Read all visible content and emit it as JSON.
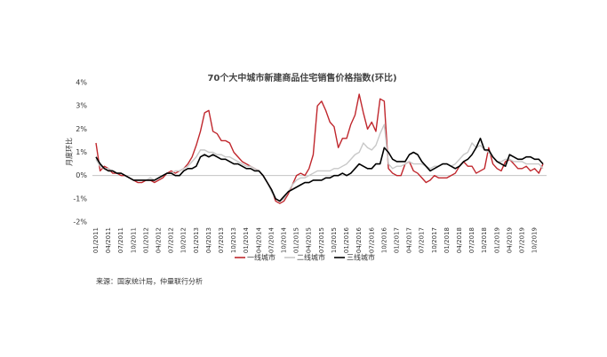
{
  "chart_data": {
    "type": "line",
    "title": "70个大中城市新建商品住宅销售价格指数(环比)",
    "y_label": "月度环比",
    "source": "来源：国家统计局，仲量联行分析",
    "categories": [
      "01/2011",
      null,
      null,
      "04/2011",
      null,
      null,
      "07/2011",
      null,
      null,
      "10/2011",
      null,
      null,
      "01/2012",
      null,
      null,
      "04/2012",
      null,
      null,
      "07/2012",
      null,
      null,
      "10/2012",
      null,
      null,
      "01/2013",
      null,
      null,
      "04/2013",
      null,
      null,
      "07/2013",
      null,
      null,
      "10/2013",
      null,
      null,
      "01/2014",
      null,
      null,
      "04/2014",
      null,
      null,
      "07/2014",
      null,
      null,
      "10/2014",
      null,
      null,
      "01/2015",
      null,
      null,
      "04/2015",
      null,
      null,
      "07/2015",
      null,
      null,
      "10/2015",
      null,
      null,
      "01/2016",
      null,
      null,
      "04/2016",
      null,
      null,
      "07/2016",
      null,
      null,
      "10/2016",
      null,
      null,
      "01/2017",
      null,
      null,
      "04/2017",
      null,
      null,
      "07/2017",
      null,
      null,
      "10/2017",
      null,
      null,
      "01/2018",
      null,
      null,
      "04/2018",
      null,
      null,
      "07/2018",
      null,
      null,
      "10/2018",
      null,
      null,
      "01/2019",
      null,
      null,
      "04/2019",
      null,
      null,
      "07/2019",
      null,
      null,
      "10/2019",
      null,
      null
    ],
    "series": [
      {
        "name": "一线城市",
        "color": "#c0272d",
        "values": [
          1.4,
          0.2,
          0.4,
          0.3,
          0.1,
          0.1,
          0.0,
          0.0,
          -0.1,
          -0.2,
          -0.3,
          -0.3,
          -0.2,
          -0.2,
          -0.3,
          -0.2,
          -0.1,
          0.1,
          0.2,
          0.1,
          0.2,
          0.3,
          0.5,
          0.8,
          1.3,
          1.9,
          2.7,
          2.8,
          1.9,
          1.8,
          1.5,
          1.5,
          1.4,
          1.0,
          0.8,
          0.6,
          0.5,
          0.4,
          0.3,
          0.2,
          0.0,
          -0.3,
          -0.6,
          -1.1,
          -1.2,
          -1.1,
          -0.8,
          -0.4,
          0.0,
          0.1,
          0.0,
          0.3,
          0.9,
          3.0,
          3.2,
          2.8,
          2.3,
          2.1,
          1.2,
          1.6,
          1.6,
          2.2,
          2.6,
          3.5,
          2.7,
          2.0,
          2.3,
          1.9,
          3.3,
          3.2,
          0.3,
          0.1,
          0.0,
          0.0,
          0.5,
          0.6,
          0.2,
          0.1,
          -0.1,
          -0.3,
          -0.2,
          0.0,
          -0.1,
          -0.1,
          -0.1,
          0.0,
          0.1,
          0.4,
          0.6,
          0.4,
          0.4,
          0.1,
          0.2,
          0.3,
          1.2,
          0.5,
          0.3,
          0.2,
          0.6,
          0.7,
          0.5,
          0.3,
          0.3,
          0.4,
          0.2,
          0.3,
          0.1,
          0.5
        ]
      },
      {
        "name": "二线城市",
        "color": "#c8c8c8",
        "values": [
          0.7,
          0.4,
          0.3,
          0.3,
          0.2,
          0.1,
          0.1,
          0.0,
          -0.1,
          -0.2,
          -0.2,
          -0.2,
          -0.2,
          -0.1,
          -0.2,
          -0.1,
          0.0,
          0.1,
          0.1,
          0.2,
          0.2,
          0.3,
          0.4,
          0.6,
          0.8,
          1.1,
          1.1,
          1.0,
          1.0,
          0.9,
          0.9,
          0.8,
          0.8,
          0.7,
          0.6,
          0.5,
          0.4,
          0.4,
          0.3,
          0.2,
          0.0,
          -0.3,
          -0.7,
          -1.0,
          -1.1,
          -1.0,
          -0.7,
          -0.4,
          -0.2,
          -0.1,
          -0.1,
          0.0,
          0.1,
          0.2,
          0.2,
          0.2,
          0.2,
          0.3,
          0.3,
          0.4,
          0.5,
          0.7,
          0.9,
          1.0,
          1.4,
          1.2,
          1.1,
          1.3,
          1.8,
          2.2,
          0.5,
          0.3,
          0.4,
          0.4,
          0.5,
          0.6,
          0.5,
          0.5,
          0.5,
          0.4,
          0.3,
          0.4,
          0.4,
          0.5,
          0.5,
          0.4,
          0.5,
          0.7,
          0.9,
          1.0,
          1.4,
          1.2,
          1.3,
          1.1,
          1.0,
          0.8,
          0.6,
          0.6,
          0.7,
          0.7,
          0.6,
          0.6,
          0.6,
          0.5,
          0.5,
          0.5,
          0.5,
          0.3
        ]
      },
      {
        "name": "三线城市",
        "color": "#000000",
        "values": [
          0.8,
          0.5,
          0.3,
          0.2,
          0.2,
          0.1,
          0.1,
          0.0,
          -0.1,
          -0.2,
          -0.2,
          -0.2,
          -0.2,
          -0.2,
          -0.2,
          -0.1,
          0.0,
          0.1,
          0.1,
          0.0,
          0.0,
          0.2,
          0.3,
          0.3,
          0.4,
          0.8,
          0.9,
          0.8,
          0.9,
          0.8,
          0.7,
          0.7,
          0.6,
          0.5,
          0.5,
          0.4,
          0.3,
          0.3,
          0.2,
          0.2,
          0.0,
          -0.3,
          -0.6,
          -1.0,
          -1.1,
          -0.9,
          -0.7,
          -0.6,
          -0.5,
          -0.4,
          -0.3,
          -0.3,
          -0.2,
          -0.2,
          -0.2,
          -0.1,
          -0.1,
          0.0,
          0.0,
          0.1,
          0.0,
          0.1,
          0.3,
          0.5,
          0.4,
          0.3,
          0.3,
          0.5,
          0.5,
          1.2,
          1.0,
          0.7,
          0.6,
          0.6,
          0.6,
          0.9,
          1.0,
          0.9,
          0.6,
          0.4,
          0.2,
          0.3,
          0.4,
          0.5,
          0.5,
          0.4,
          0.3,
          0.4,
          0.6,
          0.7,
          0.9,
          1.2,
          1.6,
          1.1,
          1.1,
          0.8,
          0.6,
          0.5,
          0.4,
          0.9,
          0.8,
          0.7,
          0.7,
          0.8,
          0.8,
          0.7,
          0.7,
          0.5
        ]
      }
    ],
    "ylim": [
      -2,
      4
    ],
    "yticks": [
      {
        "value": -2,
        "label": "-2%"
      },
      {
        "value": -1,
        "label": "-1%"
      },
      {
        "value": 0,
        "label": "0%"
      },
      {
        "value": 1,
        "label": "1%"
      },
      {
        "value": 2,
        "label": "2%"
      },
      {
        "value": 3,
        "label": "3%"
      },
      {
        "value": 4,
        "label": "4%"
      }
    ],
    "grid": false,
    "legend": "bottom"
  }
}
